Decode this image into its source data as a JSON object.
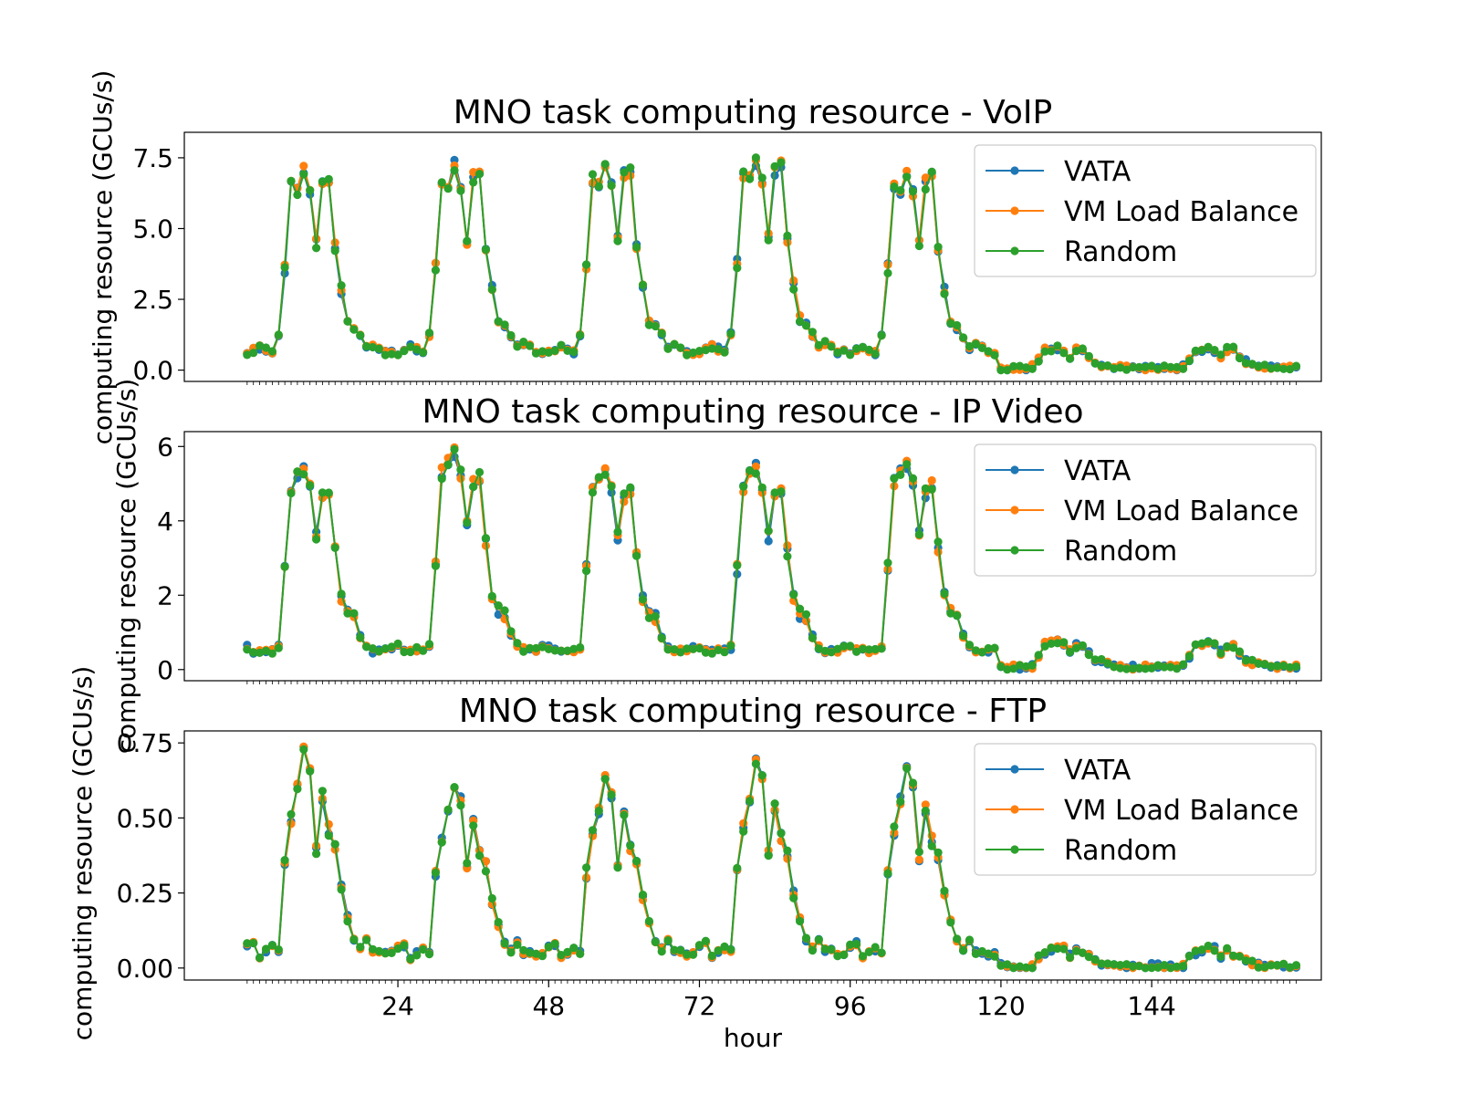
{
  "chart_data": [
    {
      "type": "line",
      "title": "MNO task computing resource - VoIP",
      "xlabel": "",
      "ylabel": "computing resource (GCUs/s)",
      "xlim": [
        -10,
        171
      ],
      "ylim": [
        -0.4,
        8.4
      ],
      "yticks": [
        0,
        2.5,
        5,
        7.5
      ],
      "ytick_labels": [
        "0.0",
        "2.5",
        "5.0",
        "7.5"
      ],
      "legend": {
        "location": "top-right",
        "entries": [
          "VATA",
          "VM Load Balance",
          "Random"
        ]
      },
      "grid": false,
      "series": [
        {
          "name": "VATA",
          "color": "#1f77b4"
        },
        {
          "name": "VM Load Balance",
          "color": "#ff7f0e"
        },
        {
          "name": "Random",
          "color": "#2ca02c"
        }
      ],
      "daily_profile": [
        0.6,
        0.7,
        0.8,
        0.7,
        0.6,
        1.2,
        3.6,
        6.5,
        6.4,
        7.0,
        6.3,
        4.5,
        6.6,
        6.8,
        4.3,
        2.8,
        1.7,
        1.5,
        1.2,
        0.8,
        0.9,
        0.8,
        0.6,
        0.6
      ],
      "day_scale": [
        1.0,
        1.03,
        1.04,
        1.06,
        1.0,
        0.11,
        0.11
      ]
    },
    {
      "type": "line",
      "title": "MNO task computing resource - IP Video",
      "xlabel": "",
      "ylabel": "computing resource (GCUs/s)",
      "xlim": [
        -10,
        171
      ],
      "ylim": [
        -0.3,
        6.4
      ],
      "yticks": [
        0,
        2,
        4,
        6
      ],
      "ytick_labels": [
        "0",
        "2",
        "4",
        "6"
      ],
      "legend": {
        "location": "top-right",
        "entries": [
          "VATA",
          "VM Load Balance",
          "Random"
        ]
      },
      "grid": false,
      "series": [
        {
          "name": "VATA",
          "color": "#1f77b4"
        },
        {
          "name": "VM Load Balance",
          "color": "#ff7f0e"
        },
        {
          "name": "Random",
          "color": "#2ca02c"
        }
      ],
      "daily_profile": [
        0.6,
        0.5,
        0.5,
        0.5,
        0.5,
        0.6,
        2.7,
        4.9,
        5.2,
        5.4,
        4.9,
        3.6,
        4.6,
        4.8,
        3.2,
        1.9,
        1.5,
        1.4,
        0.9,
        0.6,
        0.5,
        0.5,
        0.5,
        0.6
      ],
      "day_scale": [
        1.0,
        1.08,
        1.0,
        1.0,
        1.03,
        0.14,
        0.13
      ]
    },
    {
      "type": "line",
      "title": "MNO task computing resource - FTP",
      "xlabel": "hour",
      "ylabel": "computing resource (GCUs/s)",
      "xlim": [
        -10,
        171
      ],
      "ylim": [
        -0.04,
        0.79
      ],
      "yticks": [
        0,
        0.25,
        0.5,
        0.75
      ],
      "ytick_labels": [
        "0.00",
        "0.25",
        "0.50",
        "0.75"
      ],
      "xticks": [
        24,
        48,
        72,
        96,
        120,
        144
      ],
      "xtick_labels": [
        "24",
        "48",
        "72",
        "96",
        "120",
        "144"
      ],
      "legend": {
        "location": "top-right",
        "entries": [
          "VATA",
          "VM Load Balance",
          "Random"
        ]
      },
      "grid": false,
      "series": [
        {
          "name": "VATA",
          "color": "#1f77b4"
        },
        {
          "name": "VM Load Balance",
          "color": "#ff7f0e"
        },
        {
          "name": "Random",
          "color": "#2ca02c"
        }
      ],
      "daily_profile": [
        0.08,
        0.09,
        0.04,
        0.06,
        0.07,
        0.06,
        0.36,
        0.5,
        0.6,
        0.73,
        0.66,
        0.4,
        0.57,
        0.46,
        0.4,
        0.26,
        0.17,
        0.1,
        0.07,
        0.1,
        0.06,
        0.06,
        0.05,
        0.05
      ],
      "day_scale": [
        1.0,
        0.85,
        0.88,
        0.95,
        0.92,
        0.1,
        0.1
      ]
    }
  ]
}
